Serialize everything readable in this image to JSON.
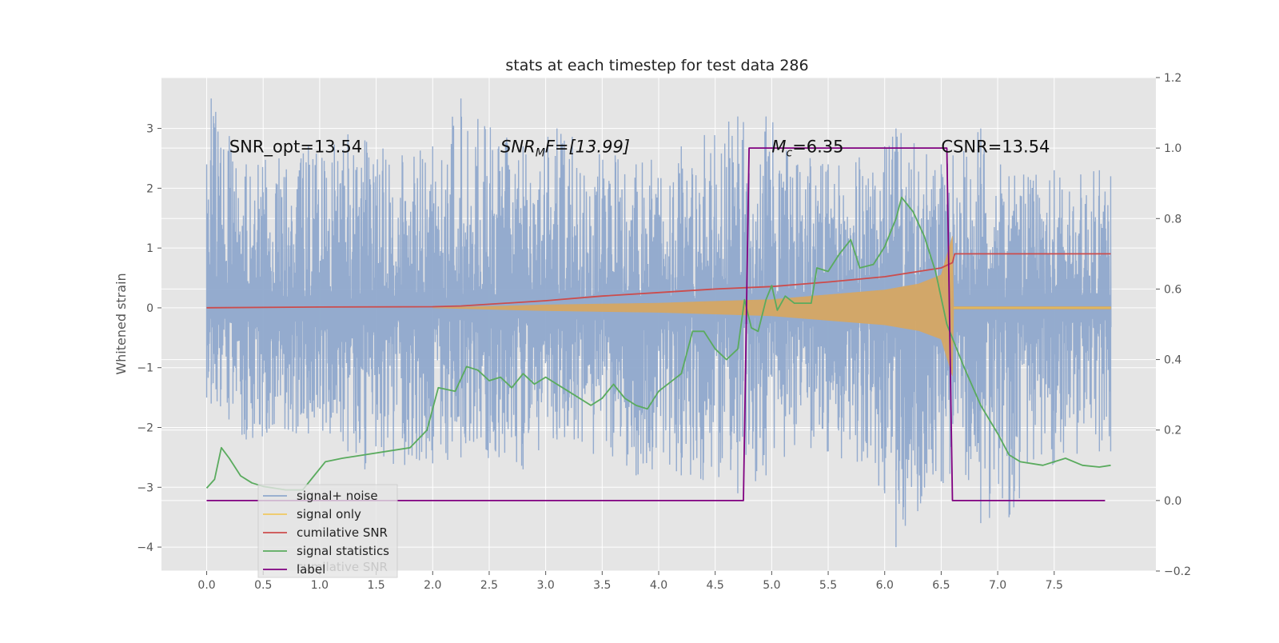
{
  "chart_data": {
    "type": "line",
    "title": "stats at each timestep for test data 286",
    "ylabel": "Whitened strain",
    "ylabel_right": "",
    "xlim": [
      -0.4,
      8.4
    ],
    "ylim": [
      -4.4,
      3.85
    ],
    "ylim_right": [
      -0.2,
      1.2
    ],
    "x_ticks": [
      0.0,
      0.5,
      1.0,
      1.5,
      2.0,
      2.5,
      3.0,
      3.5,
      4.0,
      4.5,
      5.0,
      5.5,
      6.0,
      6.5,
      7.0,
      7.5
    ],
    "x_tick_labels": [
      "0.0",
      "0.5",
      "1.0",
      "1.5",
      "2.0",
      "2.5",
      "3.0",
      "3.5",
      "4.0",
      "4.5",
      "5.0",
      "5.5",
      "6.0",
      "6.5",
      "7.0",
      "7.5"
    ],
    "y_ticks": [
      -4,
      -3,
      -2,
      -1,
      0,
      1,
      2,
      3
    ],
    "y_tick_labels": [
      "−4",
      "−3",
      "−2",
      "−1",
      "0",
      "1",
      "2",
      "3"
    ],
    "y2_ticks": [
      -0.2,
      0.0,
      0.2,
      0.4,
      0.6,
      0.8,
      1.0,
      1.2
    ],
    "y2_tick_labels": [
      "−0.2",
      "0.0",
      "0.2",
      "0.4",
      "0.6",
      "0.8",
      "1.0",
      "1.2"
    ],
    "grid": true,
    "legend_placement": "lower-left",
    "background": "#e5e5e5",
    "annotations": [
      {
        "label": "SNR_opt=13.54",
        "x": 0.2,
        "y": 2.6
      },
      {
        "label": "SNR_MF=[13.99]",
        "x": 2.6,
        "y": 2.6,
        "main": "SNR",
        "sub": "M",
        "rest": "F=[13.99]"
      },
      {
        "label": "M_c=6.35",
        "x": 5.0,
        "y": 2.6,
        "main": "M",
        "sub": "c",
        "rest": "=6.35"
      },
      {
        "label": "CSNR=13.54",
        "x": 6.5,
        "y": 2.6
      }
    ],
    "series": [
      {
        "name": "signal+ noise",
        "axis": "left",
        "color": "#8fa8cc",
        "peaks": [
          [
            0.0,
            2.4,
            -1.5
          ],
          [
            0.04,
            3.5,
            -1.6
          ],
          [
            0.35,
            2.4,
            -2.2
          ],
          [
            0.9,
            2.7,
            -2.1
          ],
          [
            1.25,
            2.9,
            -2.4
          ],
          [
            1.4,
            2.8,
            -2.7
          ],
          [
            2.0,
            2.7,
            -2.6
          ],
          [
            2.25,
            3.5,
            -2.5
          ],
          [
            2.8,
            2.7,
            -2.7
          ],
          [
            3.1,
            3.0,
            -2.2
          ],
          [
            3.8,
            2.4,
            -2.8
          ],
          [
            4.2,
            2.7,
            -2.8
          ],
          [
            4.7,
            3.2,
            -3.1
          ],
          [
            4.95,
            3.2,
            -2.8
          ],
          [
            5.5,
            2.4,
            -2.4
          ],
          [
            6.0,
            2.7,
            -3.1
          ],
          [
            6.1,
            3.0,
            -4.0
          ],
          [
            6.5,
            2.4,
            -2.9
          ],
          [
            6.85,
            3.0,
            -3.6
          ],
          [
            7.1,
            2.2,
            -3.5
          ],
          [
            7.5,
            2.3,
            -2.6
          ],
          [
            7.9,
            2.3,
            -2.4
          ],
          [
            8.0,
            2.2,
            -2.4
          ]
        ]
      },
      {
        "name": "signal only",
        "axis": "left",
        "color": "#e8c45a",
        "fill": "#d9a75f",
        "envelope": [
          [
            2.0,
            0.0
          ],
          [
            3.0,
            0.05
          ],
          [
            4.0,
            0.08
          ],
          [
            4.5,
            0.11
          ],
          [
            5.0,
            0.14
          ],
          [
            5.5,
            0.22
          ],
          [
            6.0,
            0.3
          ],
          [
            6.3,
            0.4
          ],
          [
            6.5,
            0.55
          ],
          [
            6.6,
            1.2
          ],
          [
            6.61,
            0.02
          ],
          [
            8.0,
            0.02
          ]
        ]
      },
      {
        "name": "cumilative SNR",
        "axis": "right",
        "color": "#cc4c4c",
        "points": [
          [
            0.0,
            0.547
          ],
          [
            1.0,
            0.549
          ],
          [
            2.0,
            0.55
          ],
          [
            2.25,
            0.552
          ],
          [
            2.5,
            0.557
          ],
          [
            3.0,
            0.567
          ],
          [
            3.5,
            0.58
          ],
          [
            4.0,
            0.59
          ],
          [
            4.5,
            0.6
          ],
          [
            5.0,
            0.607
          ],
          [
            5.5,
            0.62
          ],
          [
            6.0,
            0.635
          ],
          [
            6.3,
            0.65
          ],
          [
            6.5,
            0.66
          ],
          [
            6.6,
            0.675
          ],
          [
            6.62,
            0.7
          ],
          [
            8.0,
            0.7
          ]
        ]
      },
      {
        "name": "signal statistics",
        "axis": "right",
        "color": "#5aab5e",
        "points": [
          [
            0.0,
            0.035
          ],
          [
            0.07,
            0.06
          ],
          [
            0.13,
            0.15
          ],
          [
            0.2,
            0.12
          ],
          [
            0.3,
            0.07
          ],
          [
            0.4,
            0.05
          ],
          [
            0.5,
            0.04
          ],
          [
            0.7,
            0.03
          ],
          [
            0.85,
            0.03
          ],
          [
            0.95,
            0.07
          ],
          [
            1.05,
            0.11
          ],
          [
            1.2,
            0.12
          ],
          [
            1.4,
            0.13
          ],
          [
            1.6,
            0.14
          ],
          [
            1.8,
            0.15
          ],
          [
            1.95,
            0.2
          ],
          [
            2.05,
            0.32
          ],
          [
            2.2,
            0.31
          ],
          [
            2.3,
            0.38
          ],
          [
            2.4,
            0.37
          ],
          [
            2.5,
            0.34
          ],
          [
            2.6,
            0.35
          ],
          [
            2.7,
            0.32
          ],
          [
            2.8,
            0.36
          ],
          [
            2.9,
            0.33
          ],
          [
            3.0,
            0.35
          ],
          [
            3.2,
            0.31
          ],
          [
            3.4,
            0.27
          ],
          [
            3.5,
            0.29
          ],
          [
            3.6,
            0.33
          ],
          [
            3.7,
            0.29
          ],
          [
            3.8,
            0.27
          ],
          [
            3.9,
            0.26
          ],
          [
            4.0,
            0.31
          ],
          [
            4.2,
            0.36
          ],
          [
            4.3,
            0.48
          ],
          [
            4.4,
            0.48
          ],
          [
            4.5,
            0.43
          ],
          [
            4.6,
            0.4
          ],
          [
            4.7,
            0.43
          ],
          [
            4.76,
            0.57
          ],
          [
            4.82,
            0.49
          ],
          [
            4.88,
            0.48
          ],
          [
            4.95,
            0.57
          ],
          [
            5.0,
            0.61
          ],
          [
            5.05,
            0.54
          ],
          [
            5.12,
            0.58
          ],
          [
            5.2,
            0.56
          ],
          [
            5.35,
            0.56
          ],
          [
            5.4,
            0.66
          ],
          [
            5.5,
            0.65
          ],
          [
            5.6,
            0.7
          ],
          [
            5.7,
            0.74
          ],
          [
            5.78,
            0.66
          ],
          [
            5.9,
            0.67
          ],
          [
            6.0,
            0.72
          ],
          [
            6.1,
            0.8
          ],
          [
            6.15,
            0.86
          ],
          [
            6.25,
            0.82
          ],
          [
            6.35,
            0.75
          ],
          [
            6.45,
            0.65
          ],
          [
            6.55,
            0.5
          ],
          [
            6.7,
            0.38
          ],
          [
            6.85,
            0.27
          ],
          [
            7.0,
            0.19
          ],
          [
            7.1,
            0.13
          ],
          [
            7.2,
            0.11
          ],
          [
            7.4,
            0.1
          ],
          [
            7.5,
            0.11
          ],
          [
            7.6,
            0.12
          ],
          [
            7.75,
            0.1
          ],
          [
            7.9,
            0.095
          ],
          [
            8.0,
            0.1
          ]
        ]
      },
      {
        "name": "label",
        "axis": "right",
        "color": "#800080",
        "points": [
          [
            0.0,
            0.0
          ],
          [
            4.75,
            0.0
          ],
          [
            4.8,
            1.0
          ],
          [
            6.55,
            1.0
          ],
          [
            6.6,
            0.0
          ],
          [
            7.95,
            0.0
          ]
        ]
      }
    ],
    "legend_overlap_text": "cumilative SNR"
  }
}
